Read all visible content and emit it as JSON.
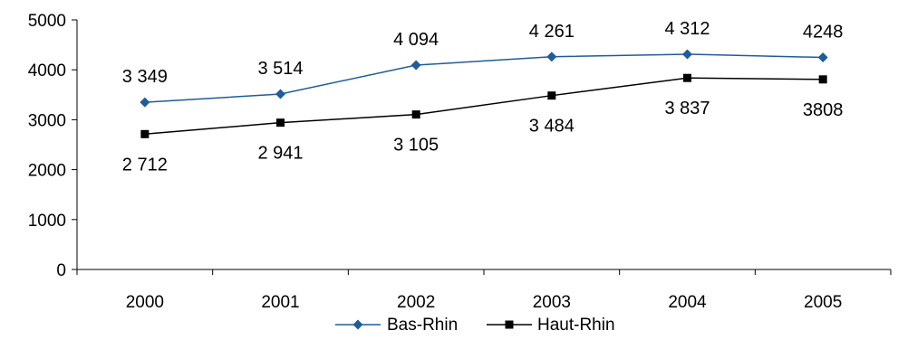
{
  "chart_data": {
    "type": "line",
    "categories": [
      "2000",
      "2001",
      "2002",
      "2003",
      "2004",
      "2005"
    ],
    "series": [
      {
        "name": "Bas-Rhin",
        "values": [
          3349,
          3514,
          4094,
          4261,
          4312,
          4248
        ],
        "labels": [
          "3 349",
          "3 514",
          "4 094",
          "4 261",
          "4 312",
          "4248"
        ],
        "color": "#1f5c99",
        "marker": "diamond",
        "label_position": "above"
      },
      {
        "name": "Haut-Rhin",
        "values": [
          2712,
          2941,
          3105,
          3484,
          3837,
          3808
        ],
        "labels": [
          "2 712",
          "2 941",
          "3 105",
          "3 484",
          "3 837",
          "3808"
        ],
        "color": "#000000",
        "marker": "square",
        "label_position": "below"
      }
    ],
    "ylim": [
      0,
      5000
    ],
    "yticks": [
      0,
      1000,
      2000,
      3000,
      4000,
      5000
    ],
    "grid": false,
    "legend_position": "bottom-center"
  }
}
